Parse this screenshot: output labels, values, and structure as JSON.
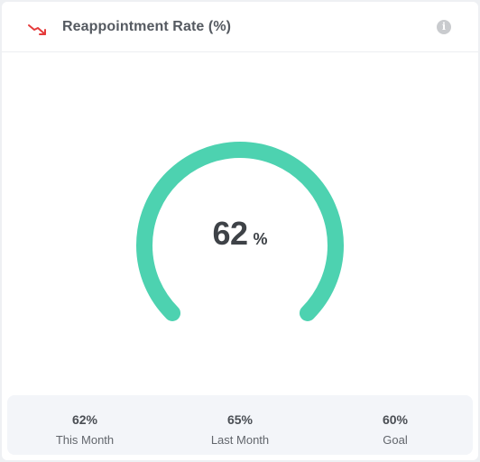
{
  "header": {
    "title": "Reappointment Rate (%)",
    "trend_icon": "trend-down-icon",
    "info_icon": "info-icon",
    "info_glyph": "i",
    "trend_color": "#e53b3b"
  },
  "gauge": {
    "value": "62",
    "unit": "%",
    "fill_fraction": 1.0,
    "color": "#4dd2b0"
  },
  "stats": [
    {
      "value": "62%",
      "label": "This Month"
    },
    {
      "value": "65%",
      "label": "Last Month"
    },
    {
      "value": "60%",
      "label": "Goal"
    }
  ]
}
